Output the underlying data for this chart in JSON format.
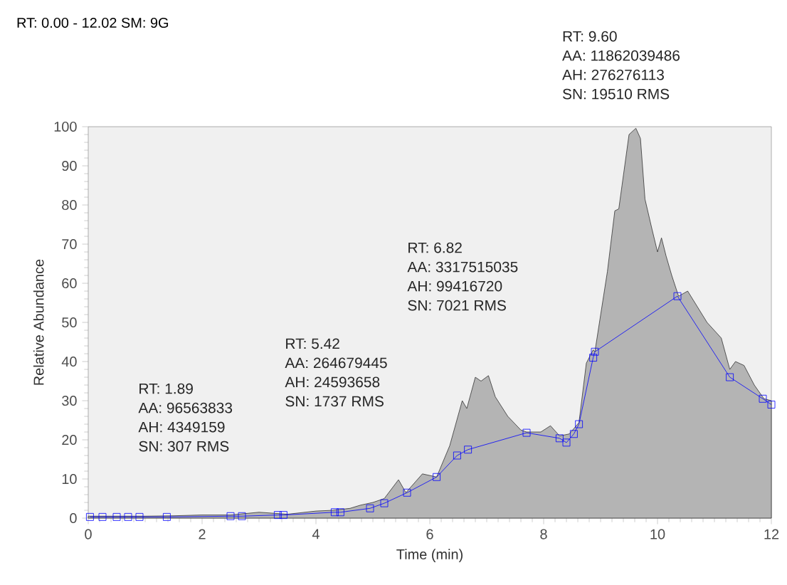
{
  "chart_data": {
    "type": "area",
    "title": "RT: 0.00 - 12.02   SM: 9G",
    "xlabel": "Time (min)",
    "ylabel": "Relative Abundance",
    "xlim": [
      0,
      12
    ],
    "ylim": [
      0,
      100
    ],
    "xticks": [
      0,
      2,
      4,
      6,
      8,
      10,
      12
    ],
    "yticks": [
      0,
      10,
      20,
      30,
      40,
      50,
      60,
      70,
      80,
      90,
      100
    ],
    "grid": false,
    "series": [
      {
        "color": "#b4b4b4",
        "marker": "none",
        "x": [
          0,
          0.5,
          1,
          1.5,
          2,
          2.5,
          3,
          3.5,
          4,
          4.3,
          4.6,
          4.78,
          5.0,
          5.2,
          5.45,
          5.58,
          5.87,
          6.12,
          6.35,
          6.57,
          6.65,
          6.8,
          6.9,
          7.03,
          7.15,
          7.37,
          7.6,
          7.7,
          7.95,
          8.12,
          8.28,
          8.45,
          8.62,
          8.75,
          8.87,
          8.9,
          9.12,
          9.25,
          9.32,
          9.5,
          9.62,
          9.7,
          9.78,
          9.9,
          10.0,
          10.07,
          10.15,
          10.25,
          10.37,
          10.53,
          10.87,
          11.12,
          11.27,
          11.37,
          11.52,
          11.7,
          11.87,
          12.0
        ],
        "values": [
          0.5,
          0.5,
          0.5,
          0.6,
          0.8,
          0.8,
          1.5,
          1,
          1.8,
          2,
          2.5,
          3.3,
          4,
          5,
          9.8,
          6.5,
          11.3,
          10.5,
          18.5,
          30,
          28,
          36,
          35,
          36.4,
          31,
          26,
          22.5,
          22,
          22,
          23.6,
          21,
          21.5,
          24.4,
          39.6,
          43,
          42.5,
          63,
          78.5,
          79,
          98,
          99.6,
          97,
          81.5,
          74,
          68,
          71.6,
          67,
          62,
          56.7,
          58,
          50,
          46,
          38,
          40,
          39,
          34,
          30.5,
          30
        ]
      },
      {
        "type": "line",
        "color": "#0000ff",
        "marker": "square",
        "x": [
          0.03,
          0.25,
          0.5,
          0.7,
          0.9,
          1.38,
          2.5,
          2.7,
          3.33,
          3.43,
          4.33,
          4.43,
          4.95,
          5.2,
          5.6,
          6.12,
          6.48,
          6.67,
          7.7,
          8.28,
          8.4,
          8.53,
          8.62,
          8.87,
          8.9,
          10.35,
          11.27,
          11.85,
          12.0
        ],
        "values": [
          0.3,
          0.3,
          0.3,
          0.3,
          0.3,
          0.3,
          0.5,
          0.5,
          0.8,
          0.8,
          1.5,
          1.5,
          2.5,
          3.8,
          6.5,
          10.5,
          16,
          17.5,
          21.8,
          20.4,
          19.3,
          21.5,
          24,
          41,
          42.5,
          56.7,
          36,
          30.5,
          29
        ]
      }
    ],
    "annotations": [
      "RT: 1.89",
      "AA: 96563833",
      "AH: 4349159",
      "SN: 307 RMS",
      "RT: 5.42",
      "AA: 264679445",
      "AH: 24593658",
      "SN: 1737 RMS",
      "RT: 6.82",
      "AA: 3317515035",
      "AH: 99416720",
      "SN: 7021 RMS",
      "RT: 9.60",
      "AA: 11862039486",
      "AH: 276276113",
      "SN: 19510 RMS"
    ]
  }
}
